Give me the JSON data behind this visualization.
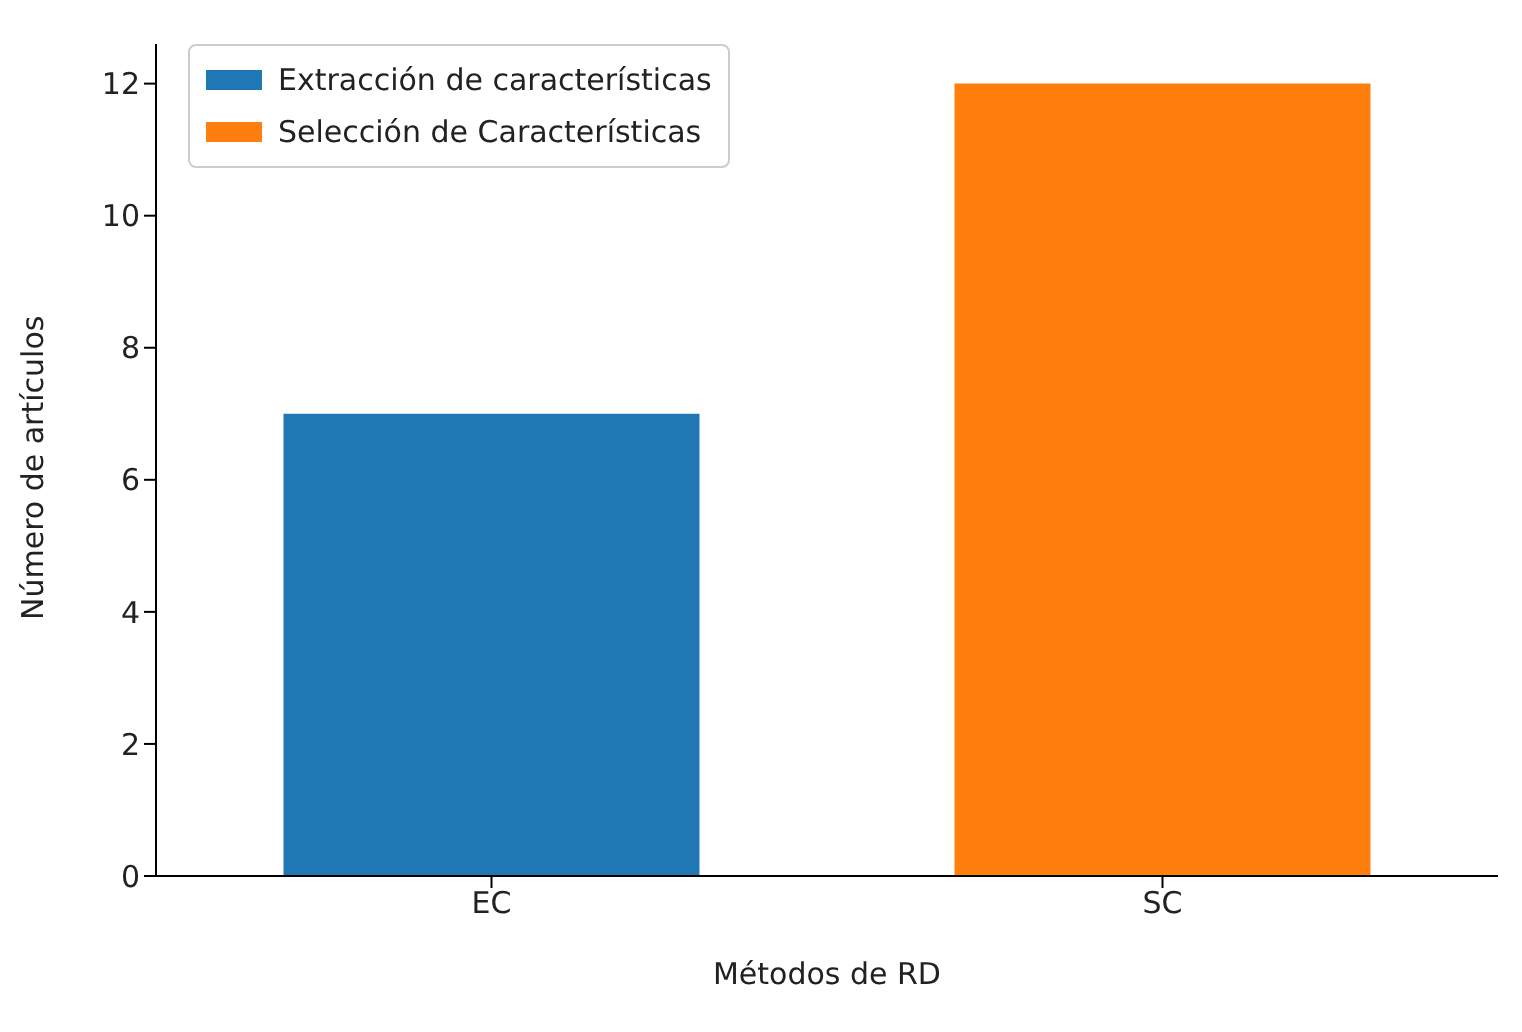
{
  "chart_data": {
    "type": "bar",
    "xlabel": "Métodos de RD",
    "ylabel": "Número de artículos",
    "categories": [
      "EC",
      "SC"
    ],
    "series": [
      {
        "name": "Extracción de características",
        "color": "#1f77b4",
        "values": [
          7,
          null
        ]
      },
      {
        "name": "Selección de Características",
        "color": "#ff7f0e",
        "values": [
          null,
          12
        ]
      }
    ],
    "ylim": [
      0,
      12.6
    ],
    "yticks": [
      0,
      2,
      4,
      6,
      8,
      10,
      12
    ],
    "grid": false,
    "legend": "top left"
  }
}
